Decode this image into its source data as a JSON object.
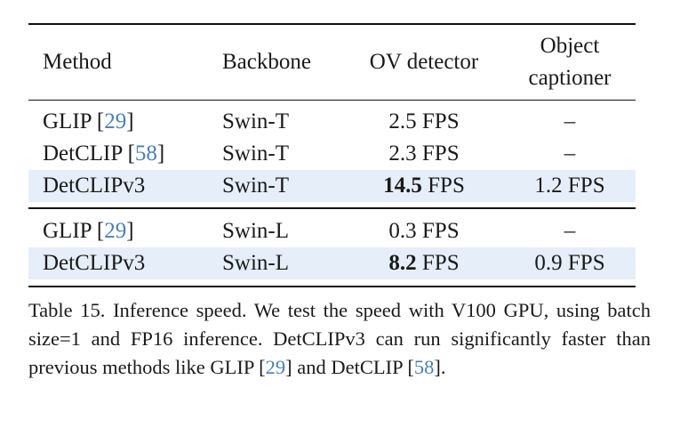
{
  "table": {
    "header": [
      "Method",
      "Backbone",
      "OV detector",
      "Object captioner"
    ],
    "groups": [
      [
        {
          "method": "GLIP",
          "ref": "[29]",
          "backbone": "Swin-T",
          "ov_detector": "2.5 FPS",
          "captioner": "–"
        },
        {
          "method": "DetCLIP",
          "ref": "[58]",
          "backbone": "Swin-T",
          "ov_detector": "2.3 FPS",
          "captioner": "–"
        },
        {
          "method": "DetCLIPv3",
          "backbone": "Swin-T",
          "ov_detector": "14.5 FPS",
          "bold": true,
          "captioner": "1.2 FPS",
          "highlighted": true
        }
      ],
      [
        {
          "method": "GLIP",
          "ref": "[29]",
          "backbone": "Swin-L",
          "ov_detector": "0.3 FPS",
          "captioner": "–"
        },
        {
          "method": "DetCLIPv3",
          "backbone": "Swin-L",
          "ov_detector": "8.2 FPS",
          "bold": true,
          "captioner": "0.9 FPS",
          "highlighted": true
        }
      ]
    ],
    "highlight_color": "#e6eef9",
    "link_color": "#4a7fb5"
  },
  "caption": "Table 15. Inference speed. We test the speed with V100 GPU, using batch size=1 and FP16 inference. DetCLIPv3 can run significantly faster than previous methods like GLIP [29] and DetCLIP [58]."
}
